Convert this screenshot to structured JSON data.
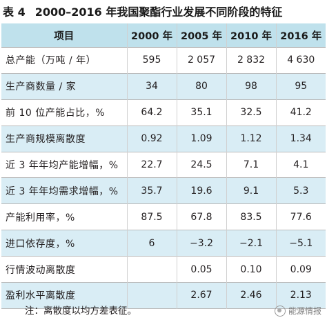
{
  "title": {
    "number": "表 4",
    "text": "2000–2016 年我国聚酯行业发展不同阶段的特征"
  },
  "table": {
    "headers": [
      "项目",
      "2000 年",
      "2005 年",
      "2010 年",
      "2016 年"
    ],
    "rows": [
      [
        "总产能（万吨 / 年）",
        "595",
        "2 057",
        "2 832",
        "4 630"
      ],
      [
        "生产商数量 / 家",
        "34",
        "80",
        "98",
        "95"
      ],
      [
        "前 10 位产能占比，%",
        "64.2",
        "35.1",
        "32.5",
        "41.2"
      ],
      [
        "生产商规模离散度",
        "0.92",
        "1.09",
        "1.12",
        "1.34"
      ],
      [
        "近 3 年年均产能增幅，%",
        "22.7",
        "24.5",
        "7.1",
        "4.1"
      ],
      [
        "近 3 年年均需求增幅，%",
        "35.7",
        "19.6",
        "9.1",
        "5.3"
      ],
      [
        "产能利用率，%",
        "87.5",
        "67.8",
        "83.5",
        "77.6"
      ],
      [
        "进口依存度，%",
        "6",
        "−3.2",
        "−2.1",
        "−5.1"
      ],
      [
        "行情波动离散度",
        "",
        "0.05",
        "0.10",
        "0.09"
      ],
      [
        "盈利水平离散度",
        "",
        "2.67",
        "2.46",
        "2.13"
      ]
    ]
  },
  "note": "注：离散度以均方差表征。",
  "watermark": {
    "text": "能源情报",
    "icon": "wechat-logo-icon"
  }
}
